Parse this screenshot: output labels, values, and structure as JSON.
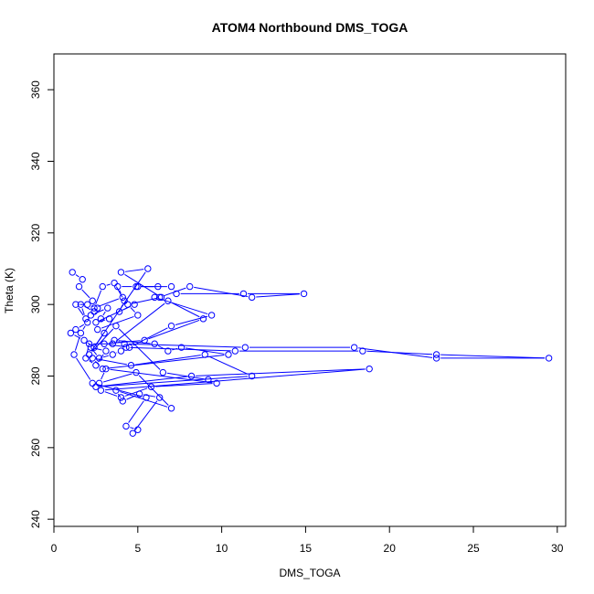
{
  "chart_data": {
    "type": "line",
    "title": "ATOM4 Northbound DMS_TOGA",
    "xlabel": "DMS_TOGA",
    "ylabel": "Theta (K)",
    "xlim": [
      0,
      30.5
    ],
    "ylim": [
      238,
      370
    ],
    "xticks": [
      0,
      5,
      10,
      15,
      20,
      25,
      30
    ],
    "yticks": [
      240,
      260,
      280,
      300,
      320,
      340,
      360
    ],
    "grid": false,
    "legend": "none",
    "marker": "open-circle",
    "colors": {
      "series": "#0000ff",
      "axis": "#000000"
    },
    "series": [
      {
        "x": [
          1.1,
          1.7,
          1.5,
          2.3,
          2.6,
          2.0,
          1.3,
          1.9,
          1.6,
          2.4,
          2.2,
          3.2,
          2.8,
          3.3,
          2.5,
          4.8,
          3.9,
          4.2,
          3.6,
          2.9,
          2.4,
          4.1,
          3.8,
          4.9,
          6.2,
          5.0,
          7.0,
          7.3,
          11.3,
          14.9,
          11.8,
          8.1,
          6.3,
          6.0,
          9.4,
          7.0,
          4.5,
          3.0,
          5.4,
          8.9,
          6.8,
          3.5,
          2.1,
          1.9,
          2.5,
          3.1,
          2.2,
          2.7,
          3.5,
          4.0,
          4.3,
          10.8,
          18.4,
          22.8,
          29.5,
          22.8,
          17.9,
          11.4,
          4.2,
          3.6,
          6.0,
          6.8,
          7.6,
          10.4,
          2.9,
          2.3,
          4.6,
          9.0,
          11.8,
          2.5,
          8.2,
          18.8,
          2.8,
          4.0,
          5.8,
          9.7,
          3.1,
          2.7,
          4.9,
          7.0,
          3.7,
          4.1,
          5.1,
          6.3,
          4.7,
          5.0,
          4.3,
          5.5,
          2.3,
          1.2,
          1.6,
          2.0,
          1.3,
          1.0,
          1.8,
          2.4,
          3.0,
          2.6,
          5.0,
          4.4,
          6.4,
          4.0,
          5.6,
          2.1,
          3.7,
          6.5,
          9.2
        ],
        "y": [
          309,
          307,
          305,
          301,
          299,
          300,
          300,
          296,
          300,
          298,
          297,
          299,
          296,
          296,
          295,
          300,
          298,
          301,
          306,
          305,
          299,
          302,
          305,
          305,
          305,
          305,
          305,
          303,
          303,
          303,
          302,
          305,
          302,
          302,
          297,
          294,
          288,
          289,
          290,
          296,
          301,
          289,
          289,
          285,
          283,
          287,
          288,
          285,
          286,
          287,
          288,
          287,
          287,
          286,
          285,
          285,
          288,
          288,
          289,
          290,
          289,
          287,
          288,
          286,
          282,
          285,
          283,
          286,
          280,
          277,
          280,
          282,
          276,
          274,
          277,
          278,
          282,
          278,
          281,
          271,
          276,
          273,
          275,
          274,
          264,
          265,
          266,
          274,
          278,
          286,
          292,
          295,
          293,
          292,
          290,
          288,
          292,
          293,
          297,
          300,
          302,
          309,
          310,
          286,
          294,
          281,
          279
        ]
      }
    ]
  }
}
